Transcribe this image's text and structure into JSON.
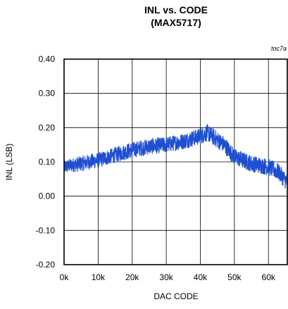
{
  "chart_data": {
    "type": "line",
    "title": "INL vs. CODE",
    "subtitle": "(MAX5717)",
    "xlabel": "DAC CODE",
    "ylabel": "INL (LSB)",
    "annotation": "toc7a",
    "xlim": [
      0,
      65535
    ],
    "ylim": [
      -0.2,
      0.4
    ],
    "x_ticks": [
      0,
      10000,
      20000,
      30000,
      40000,
      50000,
      60000
    ],
    "x_tick_labels": [
      "0k",
      "10k",
      "20k",
      "30k",
      "40k",
      "50k",
      "60k"
    ],
    "y_ticks": [
      0.4,
      0.3,
      0.2,
      0.1,
      0.0,
      -0.1,
      -0.2
    ],
    "y_tick_labels": [
      "0.40",
      "0.30",
      "0.20",
      "0.10",
      "0.00",
      "-0.10",
      "-0.20"
    ],
    "grid": true,
    "line_color": "#1f4fd1",
    "series": [
      {
        "x": [
          0,
          2000,
          5000,
          10000,
          15000,
          20000,
          25000,
          30000,
          35000,
          40000,
          42000,
          44000,
          47000,
          50000,
          55000,
          60000,
          63000,
          65535
        ],
        "y_center": [
          0.085,
          0.09,
          0.095,
          0.105,
          0.12,
          0.135,
          0.145,
          0.15,
          0.16,
          0.175,
          0.185,
          0.172,
          0.15,
          0.115,
          0.095,
          0.085,
          0.07,
          0.04
        ],
        "y_spread": [
          0.02,
          0.02,
          0.022,
          0.022,
          0.022,
          0.023,
          0.023,
          0.023,
          0.023,
          0.024,
          0.025,
          0.025,
          0.024,
          0.024,
          0.024,
          0.024,
          0.024,
          0.025
        ]
      }
    ]
  }
}
